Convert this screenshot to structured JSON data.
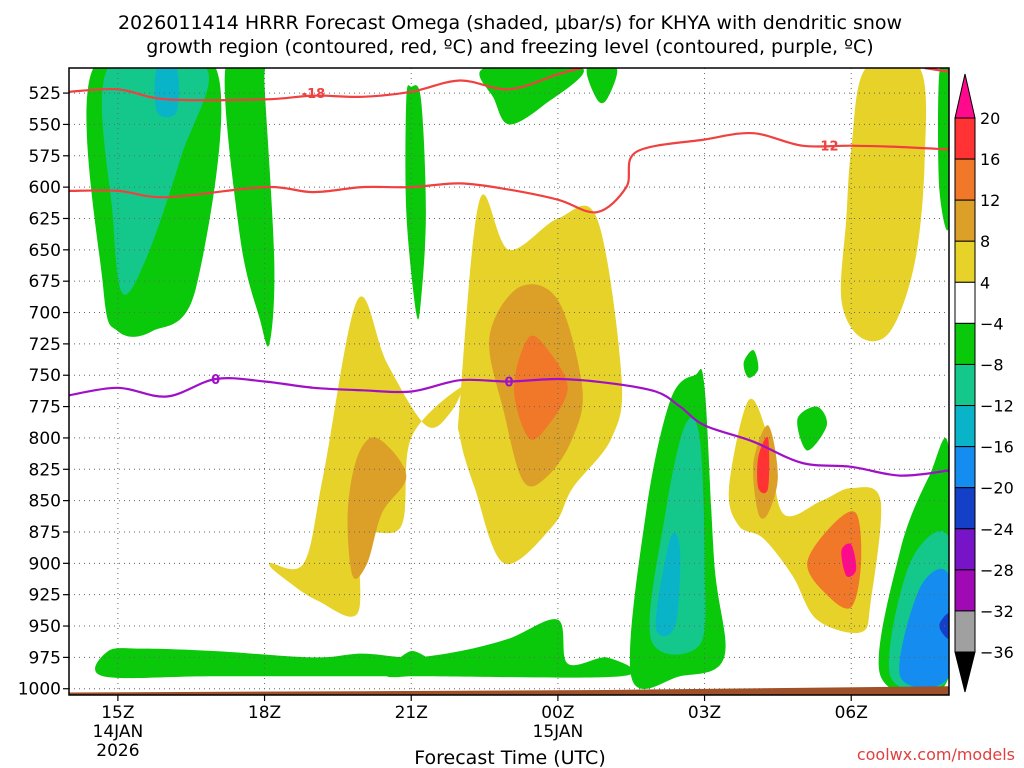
{
  "chart_data": {
    "type": "heatmap",
    "title_line1": "2026011414 HRRR Forecast Omega (shaded, μbar/s) for KHYA with dendritic snow",
    "title_line2": "growth region (contoured, red, ºC) and freezing level (contoured, purple, ºC)",
    "xlabel": "Forecast Time (UTC)",
    "credit": "coolwx.com/models",
    "y_ticks": [
      "525",
      "550",
      "575",
      "600",
      "625",
      "650",
      "675",
      "700",
      "725",
      "750",
      "775",
      "800",
      "825",
      "850",
      "875",
      "900",
      "925",
      "950",
      "975",
      "1000"
    ],
    "x_ticks": [
      {
        "label": "15Z",
        "sub1": "14JAN",
        "sub2": "2026"
      },
      {
        "label": "18Z",
        "sub1": "",
        "sub2": ""
      },
      {
        "label": "21Z",
        "sub1": "",
        "sub2": ""
      },
      {
        "label": "00Z",
        "sub1": "15JAN",
        "sub2": ""
      },
      {
        "label": "03Z",
        "sub1": "",
        "sub2": ""
      },
      {
        "label": "06Z",
        "sub1": "",
        "sub2": ""
      }
    ],
    "x_range_hours": [
      -1.0,
      17.0
    ],
    "y_range_hPa": [
      1005,
      505
    ],
    "colorbar": {
      "labels": [
        "20",
        "16",
        "12",
        "8",
        "4",
        "−4",
        "−8",
        "−12",
        "−16",
        "−20",
        "−24",
        "−28",
        "−32",
        "−36"
      ],
      "colors": [
        "#ff0a8c",
        "#ff3333",
        "#f07828",
        "#dca028",
        "#e6d228",
        "#ffffff",
        "#0ac80a",
        "#14c88c",
        "#0ab4c8",
        "#148cf0",
        "#1440c8",
        "#7814c8",
        "#a00ab4",
        "#a0a0a0",
        "#000000"
      ]
    },
    "series": [
      {
        "kind": "contour",
        "color": "#f04040",
        "label": "-18",
        "points": [
          [
            -1.0,
            524
          ],
          [
            0.0,
            522
          ],
          [
            1.0,
            530
          ],
          [
            3.0,
            530
          ],
          [
            4.0,
            527
          ],
          [
            5.0,
            528
          ],
          [
            6.0,
            524
          ],
          [
            7.0,
            515
          ],
          [
            8.0,
            522
          ],
          [
            9.0,
            510
          ],
          [
            9.5,
            505
          ]
        ]
      },
      {
        "kind": "contour",
        "color": "#f04040",
        "label": "-12",
        "points": [
          [
            -1.0,
            603
          ],
          [
            0.0,
            603
          ],
          [
            1.0,
            608
          ],
          [
            3.0,
            600
          ],
          [
            4.0,
            604
          ],
          [
            5.0,
            600
          ],
          [
            6.0,
            600
          ],
          [
            7.0,
            597
          ],
          [
            8.0,
            602
          ],
          [
            9.0,
            610
          ],
          [
            9.8,
            620
          ],
          [
            10.4,
            600
          ],
          [
            10.6,
            572
          ],
          [
            12.0,
            562
          ],
          [
            13.0,
            557
          ],
          [
            14.0,
            567
          ],
          [
            15.0,
            567
          ],
          [
            16.0,
            568
          ],
          [
            17.0,
            570
          ]
        ]
      },
      {
        "kind": "contour",
        "color": "#f04040",
        "label": "-12",
        "points": [
          [
            16.5,
            505
          ],
          [
            17.0,
            508
          ]
        ]
      },
      {
        "kind": "contour",
        "color": "#a010c8",
        "label": "0",
        "points": [
          [
            -1.0,
            766
          ],
          [
            0.0,
            760
          ],
          [
            1.0,
            767
          ],
          [
            2.0,
            753
          ],
          [
            3.0,
            755
          ],
          [
            4.0,
            760
          ],
          [
            5.0,
            762
          ],
          [
            6.0,
            763
          ],
          [
            7.0,
            754
          ],
          [
            8.0,
            755
          ],
          [
            9.0,
            753
          ],
          [
            10.0,
            756
          ],
          [
            11.0,
            763
          ],
          [
            11.5,
            775
          ],
          [
            12.0,
            790
          ],
          [
            13.0,
            803
          ],
          [
            14.0,
            820
          ],
          [
            15.0,
            823
          ],
          [
            16.0,
            830
          ],
          [
            17.0,
            826
          ]
        ]
      }
    ],
    "shaded_regions": [
      {
        "value": -8,
        "color": "#0ac80a",
        "points": [
          [
            -0.5,
            505
          ],
          [
            -0.3,
            680
          ],
          [
            0.0,
            715
          ],
          [
            0.7,
            715
          ],
          [
            1.6,
            680
          ],
          [
            2.0,
            505
          ]
        ]
      },
      {
        "value": -12,
        "color": "#14c88c",
        "points": [
          [
            -0.2,
            505
          ],
          [
            -0.1,
            625
          ],
          [
            0.1,
            685
          ],
          [
            0.6,
            655
          ],
          [
            1.3,
            575
          ],
          [
            1.8,
            505
          ]
        ]
      },
      {
        "value": -16,
        "color": "#0ab4c8",
        "points": [
          [
            0.8,
            505
          ],
          [
            0.8,
            540
          ],
          [
            1.2,
            540
          ],
          [
            1.2,
            505
          ]
        ]
      },
      {
        "value": -8,
        "color": "#0ac80a",
        "points": [
          [
            2.2,
            505
          ],
          [
            2.5,
            640
          ],
          [
            2.9,
            705
          ],
          [
            3.1,
            725
          ],
          [
            3.2,
            660
          ],
          [
            3.0,
            520
          ],
          [
            3.0,
            505
          ]
        ]
      },
      {
        "value": -8,
        "color": "#0ac80a",
        "points": [
          [
            5.9,
            530
          ],
          [
            5.9,
            620
          ],
          [
            6.1,
            700
          ],
          [
            6.2,
            690
          ],
          [
            6.3,
            620
          ],
          [
            6.2,
            530
          ],
          [
            6.0,
            520
          ]
        ]
      },
      {
        "value": -8,
        "color": "#0ac80a",
        "points": [
          [
            7.5,
            505
          ],
          [
            7.7,
            530
          ],
          [
            8.0,
            550
          ],
          [
            8.7,
            535
          ],
          [
            9.5,
            505
          ]
        ]
      },
      {
        "value": -8,
        "color": "#0ac80a",
        "points": [
          [
            9.6,
            505
          ],
          [
            9.8,
            530
          ],
          [
            10.0,
            530
          ],
          [
            10.2,
            505
          ]
        ]
      },
      {
        "value": 4,
        "color": "#e6d228",
        "points": [
          [
            15.3,
            505
          ],
          [
            15.0,
            570
          ],
          [
            14.9,
            625
          ],
          [
            14.8,
            690
          ],
          [
            15.2,
            720
          ],
          [
            15.8,
            715
          ],
          [
            16.3,
            660
          ],
          [
            16.5,
            580
          ],
          [
            16.4,
            505
          ]
        ]
      },
      {
        "value": -8,
        "color": "#0ac80a",
        "points": [
          [
            16.8,
            510
          ],
          [
            16.8,
            600
          ],
          [
            17.0,
            630
          ],
          [
            17.0,
            510
          ]
        ]
      },
      {
        "value": 4,
        "color": "#e6d228",
        "points": [
          [
            3.8,
            900
          ],
          [
            4.2,
            830
          ],
          [
            4.9,
            690
          ],
          [
            5.5,
            740
          ],
          [
            6.3,
            790
          ],
          [
            6.8,
            780
          ],
          [
            7.0,
            760
          ],
          [
            6.0,
            800
          ],
          [
            5.8,
            870
          ],
          [
            5.0,
            880
          ],
          [
            4.9,
            940
          ],
          [
            4.1,
            930
          ],
          [
            3.5,
            915
          ],
          [
            3.1,
            900
          ]
        ]
      },
      {
        "value": 8,
        "color": "#dca028",
        "points": [
          [
            4.9,
            815
          ],
          [
            5.3,
            800
          ],
          [
            5.9,
            830
          ],
          [
            5.4,
            860
          ],
          [
            5.1,
            900
          ],
          [
            4.8,
            910
          ],
          [
            4.7,
            860
          ]
        ]
      },
      {
        "value": 4,
        "color": "#e6d228",
        "points": [
          [
            7.0,
            770
          ],
          [
            7.4,
            610
          ],
          [
            8.0,
            650
          ],
          [
            9.0,
            625
          ],
          [
            9.8,
            625
          ],
          [
            10.3,
            750
          ],
          [
            10.1,
            800
          ],
          [
            9.3,
            840
          ],
          [
            8.9,
            870
          ],
          [
            7.9,
            900
          ],
          [
            7.3,
            840
          ],
          [
            7.0,
            800
          ]
        ]
      },
      {
        "value": 8,
        "color": "#dca028",
        "points": [
          [
            7.6,
            720
          ],
          [
            8.2,
            680
          ],
          [
            9.0,
            690
          ],
          [
            9.5,
            760
          ],
          [
            9.3,
            800
          ],
          [
            8.8,
            830
          ],
          [
            8.3,
            835
          ],
          [
            7.9,
            780
          ]
        ]
      },
      {
        "value": 12,
        "color": "#f07828",
        "points": [
          [
            8.1,
            760
          ],
          [
            8.4,
            720
          ],
          [
            8.8,
            730
          ],
          [
            9.2,
            760
          ],
          [
            8.8,
            790
          ],
          [
            8.4,
            800
          ]
        ]
      },
      {
        "value": -8,
        "color": "#0ac80a",
        "points": [
          [
            10.5,
            990
          ],
          [
            10.8,
            860
          ],
          [
            11.3,
            770
          ],
          [
            11.8,
            750
          ],
          [
            12.0,
            760
          ],
          [
            12.2,
            900
          ],
          [
            12.4,
            975
          ],
          [
            11.5,
            990
          ]
        ]
      },
      {
        "value": -12,
        "color": "#14c88c",
        "points": [
          [
            10.9,
            960
          ],
          [
            11.2,
            860
          ],
          [
            11.6,
            790
          ],
          [
            11.9,
            800
          ],
          [
            12.0,
            900
          ],
          [
            11.9,
            965
          ]
        ]
      },
      {
        "value": -16,
        "color": "#0ab4c8",
        "points": [
          [
            11.0,
            950
          ],
          [
            11.3,
            880
          ],
          [
            11.5,
            890
          ],
          [
            11.4,
            950
          ]
        ]
      },
      {
        "value": 4,
        "color": "#e6d228",
        "points": [
          [
            12.5,
            840
          ],
          [
            12.9,
            770
          ],
          [
            13.3,
            800
          ],
          [
            13.6,
            860
          ],
          [
            14.4,
            850
          ],
          [
            15.0,
            840
          ],
          [
            15.6,
            850
          ],
          [
            15.4,
            930
          ],
          [
            15.2,
            955
          ],
          [
            14.3,
            945
          ],
          [
            13.8,
            910
          ],
          [
            13.2,
            880
          ],
          [
            12.7,
            870
          ]
        ]
      },
      {
        "value": 8,
        "color": "#dca028",
        "points": [
          [
            13.0,
            820
          ],
          [
            13.3,
            790
          ],
          [
            13.5,
            830
          ],
          [
            13.3,
            860
          ],
          [
            13.1,
            860
          ]
        ]
      },
      {
        "value": 12,
        "color": "#f07828",
        "points": [
          [
            14.1,
            900
          ],
          [
            14.6,
            870
          ],
          [
            15.1,
            860
          ],
          [
            15.2,
            900
          ],
          [
            15.0,
            935
          ],
          [
            14.5,
            925
          ]
        ]
      },
      {
        "value": 16,
        "color": "#ff3333",
        "points": [
          [
            13.1,
            815
          ],
          [
            13.3,
            800
          ],
          [
            13.3,
            840
          ],
          [
            13.1,
            840
          ]
        ]
      },
      {
        "value": 20,
        "color": "#ff0a8c",
        "points": [
          [
            14.8,
            890
          ],
          [
            15.0,
            885
          ],
          [
            15.1,
            905
          ],
          [
            14.9,
            910
          ]
        ]
      },
      {
        "value": -8,
        "color": "#0ac80a",
        "points": [
          [
            12.8,
            740
          ],
          [
            13.0,
            730
          ],
          [
            13.1,
            745
          ],
          [
            12.9,
            752
          ]
        ]
      },
      {
        "value": -8,
        "color": "#0ac80a",
        "points": [
          [
            13.9,
            785
          ],
          [
            14.3,
            775
          ],
          [
            14.5,
            790
          ],
          [
            14.1,
            810
          ]
        ]
      },
      {
        "value": -8,
        "color": "#0ac80a",
        "points": [
          [
            15.6,
            990
          ],
          [
            16.0,
            890
          ],
          [
            16.6,
            830
          ],
          [
            17.0,
            810
          ],
          [
            17.0,
            990
          ]
        ]
      },
      {
        "value": -12,
        "color": "#14c88c",
        "points": [
          [
            15.8,
            990
          ],
          [
            16.2,
            900
          ],
          [
            17.0,
            880
          ],
          [
            17.0,
            990
          ]
        ]
      },
      {
        "value": -16,
        "color": "#148cf0",
        "points": [
          [
            16.0,
            990
          ],
          [
            16.4,
            920
          ],
          [
            17.0,
            910
          ],
          [
            17.0,
            990
          ]
        ]
      },
      {
        "value": -20,
        "color": "#1440c8",
        "points": [
          [
            16.8,
            950
          ],
          [
            17.0,
            940
          ],
          [
            17.0,
            960
          ]
        ]
      },
      {
        "value": -8,
        "color": "#0ac80a",
        "points": [
          [
            -0.3,
            990
          ],
          [
            -0.2,
            970
          ],
          [
            0.5,
            968
          ],
          [
            2.0,
            970
          ],
          [
            4.0,
            975
          ],
          [
            5.0,
            972
          ],
          [
            6.0,
            975
          ],
          [
            7.0,
            970
          ],
          [
            8.0,
            960
          ],
          [
            9.0,
            945
          ],
          [
            9.2,
            980
          ],
          [
            10.0,
            975
          ],
          [
            10.3,
            990
          ],
          [
            6.0,
            990
          ],
          [
            2.0,
            990
          ]
        ]
      },
      {
        "value": -8,
        "color": "#0ac80a",
        "points": [
          [
            5.5,
            990
          ],
          [
            6.0,
            970
          ],
          [
            6.5,
            985
          ]
        ]
      }
    ],
    "ground": {
      "color": "#a05028",
      "surface_hPa": [
        [
          -1.0,
          1003
        ],
        [
          5.0,
          1002
        ],
        [
          10.0,
          1001
        ],
        [
          17.0,
          998
        ]
      ]
    }
  }
}
